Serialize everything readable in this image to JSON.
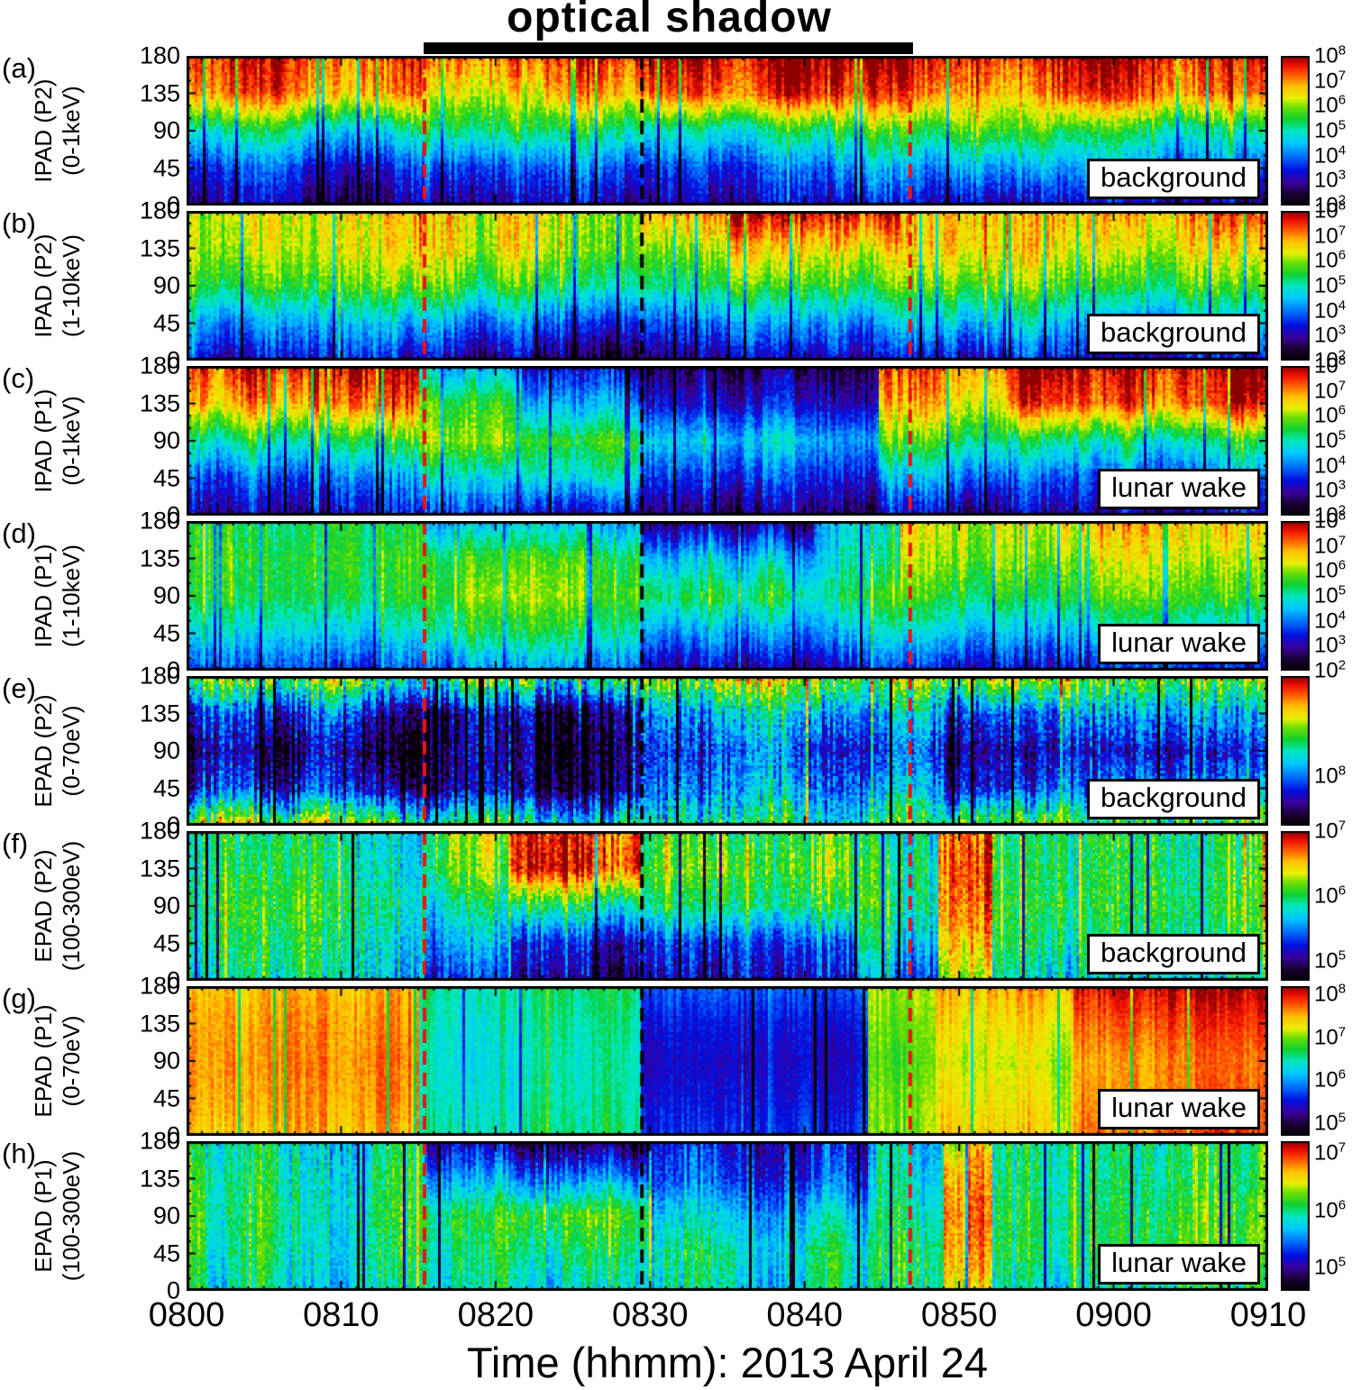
{
  "chart_data": {
    "type": "heatmap",
    "annotation": "optical shadow",
    "xlabel": "Time (hhmm): 2013 April 24",
    "x_ticks": [
      "0800",
      "0810",
      "0820",
      "0830",
      "0840",
      "0850",
      "0900",
      "0910"
    ],
    "y_ticks": [
      "180",
      "135",
      "90",
      "45",
      "0"
    ],
    "y_axis_values_deg": [
      0,
      45,
      90,
      135,
      180
    ],
    "colorbar_base": "10",
    "colorbar_scale": "log10",
    "shadow_bar": {
      "t0": 0.219,
      "t1": 0.672
    },
    "dashed_lines": [
      {
        "color": "#ee1111",
        "frac": 0.22
      },
      {
        "color": "#000000",
        "frac": 0.421
      },
      {
        "color": "#ee1111",
        "frac": 0.669
      }
    ],
    "colormap_stops": [
      [
        0.0,
        "#000000"
      ],
      [
        0.08,
        "#1a0033"
      ],
      [
        0.16,
        "#3a00a0"
      ],
      [
        0.24,
        "#0010e0"
      ],
      [
        0.33,
        "#0070ff"
      ],
      [
        0.42,
        "#00c8ff"
      ],
      [
        0.5,
        "#00e8c0"
      ],
      [
        0.58,
        "#10d030"
      ],
      [
        0.66,
        "#70e000"
      ],
      [
        0.72,
        "#e8f000"
      ],
      [
        0.8,
        "#ffc000"
      ],
      [
        0.87,
        "#ff6000"
      ],
      [
        0.94,
        "#f01000"
      ],
      [
        1.0,
        "#8c0000"
      ]
    ],
    "panels": [
      {
        "letter": "(a)",
        "label_line1": "IPAD (P2)",
        "label_line2": "(0-1keV)",
        "region": "background",
        "clim_log10": [
          2,
          8
        ],
        "colorbar_exponents": [
          8,
          7,
          6,
          5,
          4,
          3,
          2
        ],
        "segments": [
          {
            "t0": 0.0,
            "t1": 0.22,
            "v": [
              2.9,
              3.6,
              5.0,
              7.1,
              7.5
            ]
          },
          {
            "t0": 0.22,
            "t1": 0.33,
            "v": [
              3.1,
              3.9,
              5.4,
              6.5,
              7.3
            ]
          },
          {
            "t0": 0.33,
            "t1": 0.42,
            "v": [
              3.0,
              3.8,
              5.2,
              6.8,
              7.5
            ]
          },
          {
            "t0": 0.42,
            "t1": 0.6,
            "v": [
              3.0,
              3.7,
              5.0,
              7.3,
              7.9
            ]
          },
          {
            "t0": 0.6,
            "t1": 0.7,
            "v": [
              3.1,
              4.1,
              5.4,
              7.2,
              7.8
            ]
          },
          {
            "t0": 0.7,
            "t1": 0.8,
            "v": [
              3.2,
              4.4,
              5.8,
              6.9,
              7.5
            ]
          },
          {
            "t0": 0.8,
            "t1": 1.01,
            "v": [
              3.0,
              4.0,
              5.2,
              7.2,
              7.7
            ]
          }
        ]
      },
      {
        "letter": "(b)",
        "label_line1": "IPAD (P2)",
        "label_line2": "(1-10keV)",
        "region": "background",
        "clim_log10": [
          2,
          8
        ],
        "colorbar_exponents": [
          8,
          7,
          6,
          5,
          4,
          3,
          2
        ],
        "segments": [
          {
            "t0": 0.0,
            "t1": 0.2,
            "v": [
              3.3,
              4.3,
              5.6,
              6.2,
              6.3
            ]
          },
          {
            "t0": 0.2,
            "t1": 0.42,
            "v": [
              2.8,
              4.0,
              5.5,
              6.3,
              6.4
            ]
          },
          {
            "t0": 0.42,
            "t1": 0.5,
            "v": [
              3.0,
              4.1,
              5.5,
              6.3,
              7.2
            ]
          },
          {
            "t0": 0.5,
            "t1": 0.66,
            "v": [
              3.1,
              4.2,
              5.6,
              6.5,
              7.7
            ]
          },
          {
            "t0": 0.66,
            "t1": 0.8,
            "v": [
              3.1,
              4.4,
              5.7,
              6.5,
              6.6
            ]
          },
          {
            "t0": 0.8,
            "t1": 0.95,
            "v": [
              3.2,
              4.3,
              5.6,
              6.4,
              6.9
            ]
          },
          {
            "t0": 0.95,
            "t1": 1.01,
            "v": [
              3.3,
              4.4,
              5.7,
              6.6,
              7.5
            ]
          }
        ]
      },
      {
        "letter": "(c)",
        "label_line1": "IPAD (P1)",
        "label_line2": "(0-1keV)",
        "region": "lunar wake",
        "clim_log10": [
          2,
          8
        ],
        "colorbar_exponents": [
          8,
          7,
          6,
          5,
          4,
          3,
          2
        ],
        "segments": [
          {
            "t0": 0.0,
            "t1": 0.215,
            "v": [
              3.0,
              3.8,
              5.2,
              6.9,
              7.6
            ]
          },
          {
            "t0": 0.215,
            "t1": 0.31,
            "v": [
              3.3,
              4.5,
              5.8,
              5.4,
              4.2
            ]
          },
          {
            "t0": 0.31,
            "t1": 0.42,
            "v": [
              3.1,
              4.7,
              5.5,
              4.2,
              3.1
            ]
          },
          {
            "t0": 0.42,
            "t1": 0.56,
            "v": [
              2.6,
              3.5,
              4.5,
              3.2,
              2.5
            ]
          },
          {
            "t0": 0.56,
            "t1": 0.64,
            "v": [
              2.5,
              3.3,
              4.2,
              3.0,
              2.4
            ]
          },
          {
            "t0": 0.64,
            "t1": 0.76,
            "v": [
              3.0,
              4.2,
              5.6,
              6.7,
              7.3
            ]
          },
          {
            "t0": 0.76,
            "t1": 1.01,
            "v": [
              3.0,
              3.8,
              5.1,
              7.3,
              7.8
            ]
          }
        ]
      },
      {
        "letter": "(d)",
        "label_line1": "IPAD (P1)",
        "label_line2": "(1-10keV)",
        "region": "lunar wake",
        "clim_log10": [
          2,
          8
        ],
        "colorbar_exponents": [
          8,
          7,
          6,
          5,
          4,
          3,
          2
        ],
        "segments": [
          {
            "t0": 0.0,
            "t1": 0.22,
            "v": [
              3.6,
              4.6,
              5.4,
              5.5,
              5.3
            ]
          },
          {
            "t0": 0.22,
            "t1": 0.42,
            "v": [
              3.9,
              5.1,
              5.8,
              5.5,
              4.3
            ]
          },
          {
            "t0": 0.42,
            "t1": 0.58,
            "v": [
              3.0,
              4.2,
              5.4,
              4.5,
              2.8
            ]
          },
          {
            "t0": 0.58,
            "t1": 0.66,
            "v": [
              3.2,
              4.4,
              5.3,
              4.8,
              4.5
            ]
          },
          {
            "t0": 0.66,
            "t1": 0.8,
            "v": [
              3.4,
              4.6,
              5.6,
              6.1,
              6.4
            ]
          },
          {
            "t0": 0.8,
            "t1": 1.01,
            "v": [
              3.6,
              4.8,
              5.8,
              6.3,
              6.8
            ]
          }
        ]
      },
      {
        "letter": "(e)",
        "label_line1": "EPAD (P2)",
        "label_line2": "(0-70eV)",
        "region": "background",
        "clim_log10": [
          7.5,
          9.0
        ],
        "colorbar_exponents": [
          8
        ],
        "segments": [
          {
            "t0": 0.0,
            "t1": 0.22,
            "v": [
              8.5,
              7.8,
              7.65,
              7.85,
              8.45
            ]
          },
          {
            "t0": 0.22,
            "t1": 0.42,
            "v": [
              8.3,
              7.7,
              7.65,
              7.7,
              8.4
            ]
          },
          {
            "t0": 0.42,
            "t1": 0.55,
            "v": [
              8.25,
              8.0,
              7.9,
              8.05,
              8.5
            ]
          },
          {
            "t0": 0.55,
            "t1": 0.7,
            "v": [
              8.35,
              8.1,
              7.95,
              8.15,
              8.55
            ]
          },
          {
            "t0": 0.7,
            "t1": 0.82,
            "v": [
              8.4,
              7.85,
              7.7,
              7.9,
              8.5
            ]
          },
          {
            "t0": 0.82,
            "t1": 1.01,
            "v": [
              8.45,
              8.1,
              7.9,
              8.15,
              8.55
            ]
          }
        ]
      },
      {
        "letter": "(f)",
        "label_line1": "EPAD (P2)",
        "label_line2": "(100-300eV)",
        "region": "background",
        "clim_log10": [
          4.7,
          7.0
        ],
        "colorbar_exponents": [
          7,
          6,
          5
        ],
        "segments": [
          {
            "t0": 0.0,
            "t1": 0.22,
            "v": [
              5.8,
              5.9,
              6.0,
              5.9,
              5.85
            ]
          },
          {
            "t0": 0.22,
            "t1": 0.3,
            "v": [
              5.3,
              5.6,
              5.9,
              6.2,
              6.3
            ]
          },
          {
            "t0": 0.3,
            "t1": 0.42,
            "v": [
              5.1,
              5.3,
              6.0,
              6.9,
              6.85
            ]
          },
          {
            "t0": 0.42,
            "t1": 0.62,
            "v": [
              5.1,
              5.3,
              5.9,
              6.1,
              6.0
            ]
          },
          {
            "t0": 0.62,
            "t1": 0.695,
            "v": [
              5.5,
              5.8,
              6.0,
              6.0,
              5.9
            ]
          },
          {
            "t0": 0.695,
            "t1": 0.745,
            "v": [
              6.5,
              6.7,
              6.85,
              6.9,
              6.8
            ]
          },
          {
            "t0": 0.745,
            "t1": 1.01,
            "v": [
              5.75,
              5.95,
              6.05,
              6.0,
              6.0
            ]
          }
        ]
      },
      {
        "letter": "(g)",
        "label_line1": "EPAD (P1)",
        "label_line2": "(0-70eV)",
        "region": "lunar wake",
        "clim_log10": [
          4.7,
          8.2
        ],
        "colorbar_exponents": [
          8,
          7,
          6,
          5
        ],
        "segments": [
          {
            "t0": 0.0,
            "t1": 0.215,
            "v": [
              7.4,
              7.5,
              7.55,
              7.5,
              7.4
            ]
          },
          {
            "t0": 0.215,
            "t1": 0.42,
            "v": [
              6.6,
              6.5,
              6.45,
              6.5,
              6.6
            ]
          },
          {
            "t0": 0.42,
            "t1": 0.63,
            "v": [
              5.7,
              5.55,
              5.45,
              5.55,
              5.8
            ]
          },
          {
            "t0": 0.63,
            "t1": 0.695,
            "v": [
              7.0,
              7.0,
              6.9,
              7.0,
              7.1
            ]
          },
          {
            "t0": 0.695,
            "t1": 0.82,
            "v": [
              7.35,
              7.25,
              7.15,
              7.3,
              7.5
            ]
          },
          {
            "t0": 0.82,
            "t1": 1.01,
            "v": [
              7.8,
              7.7,
              7.65,
              7.85,
              8.1
            ]
          }
        ]
      },
      {
        "letter": "(h)",
        "label_line1": "EPAD (P1)",
        "label_line2": "(100-300eV)",
        "region": "lunar wake",
        "clim_log10": [
          4.6,
          7.2
        ],
        "colorbar_exponents": [
          7,
          6,
          5
        ],
        "segments": [
          {
            "t0": 0.0,
            "t1": 0.22,
            "v": [
              5.9,
              6.0,
              6.05,
              6.0,
              5.9
            ]
          },
          {
            "t0": 0.22,
            "t1": 0.3,
            "v": [
              5.9,
              6.0,
              6.1,
              5.6,
              5.1
            ]
          },
          {
            "t0": 0.3,
            "t1": 0.43,
            "v": [
              5.8,
              6.0,
              6.2,
              5.5,
              4.8
            ]
          },
          {
            "t0": 0.43,
            "t1": 0.63,
            "v": [
              5.8,
              5.9,
              5.7,
              5.35,
              5.2
            ]
          },
          {
            "t0": 0.63,
            "t1": 0.7,
            "v": [
              6.0,
              6.1,
              6.0,
              5.9,
              5.8
            ]
          },
          {
            "t0": 0.7,
            "t1": 0.745,
            "v": [
              6.6,
              6.8,
              6.9,
              6.8,
              6.6
            ]
          },
          {
            "t0": 0.745,
            "t1": 1.01,
            "v": [
              5.9,
              6.1,
              6.1,
              6.0,
              6.0
            ]
          }
        ]
      }
    ]
  }
}
